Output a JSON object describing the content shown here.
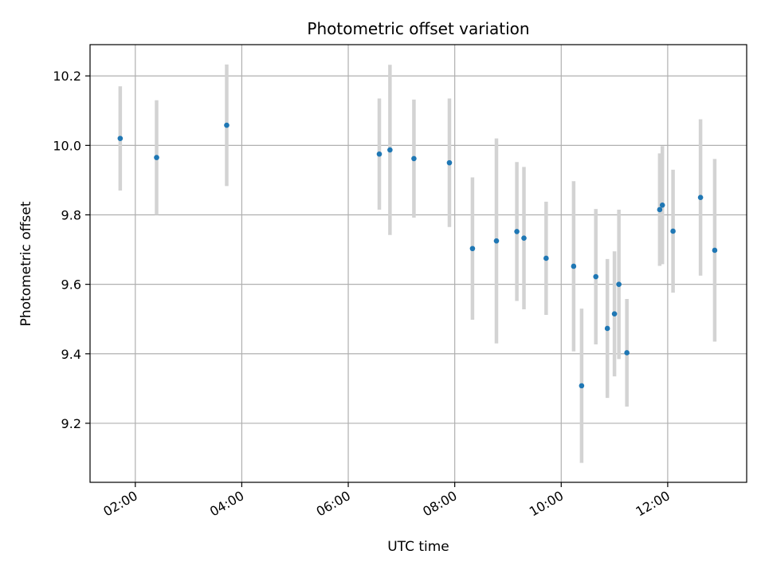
{
  "chart_data": {
    "type": "scatter",
    "title": "Photometric offset variation",
    "xlabel": "UTC time",
    "ylabel": "Photometric offset",
    "x_is_time": true,
    "xlim": [
      "01:09",
      "13:29"
    ],
    "ylim": [
      9.03,
      10.29
    ],
    "xticks": [
      "02:00",
      "04:00",
      "06:00",
      "08:00",
      "10:00",
      "12:00"
    ],
    "yticks": [
      9.2,
      9.4,
      9.6,
      9.8,
      10.0,
      10.2
    ],
    "grid": true,
    "point_color": "#1f77b4",
    "errorbar_color": "#d3d3d3",
    "points": [
      {
        "x": "01:43",
        "y": 10.02,
        "err": 0.15
      },
      {
        "x": "02:24",
        "y": 9.965,
        "err": 0.165
      },
      {
        "x": "03:43",
        "y": 10.058,
        "err": 0.175
      },
      {
        "x": "06:35",
        "y": 9.975,
        "err": 0.16
      },
      {
        "x": "06:47",
        "y": 9.987,
        "err": 0.245
      },
      {
        "x": "07:14",
        "y": 9.962,
        "err": 0.17
      },
      {
        "x": "07:54",
        "y": 9.95,
        "err": 0.185
      },
      {
        "x": "08:20",
        "y": 9.703,
        "err": 0.205
      },
      {
        "x": "08:47",
        "y": 9.725,
        "err": 0.295
      },
      {
        "x": "09:10",
        "y": 9.752,
        "err": 0.2
      },
      {
        "x": "09:18",
        "y": 9.733,
        "err": 0.205
      },
      {
        "x": "09:43",
        "y": 9.675,
        "err": 0.163
      },
      {
        "x": "10:14",
        "y": 9.652,
        "err": 0.245
      },
      {
        "x": "10:23",
        "y": 9.308,
        "err": 0.222
      },
      {
        "x": "10:39",
        "y": 9.622,
        "err": 0.195
      },
      {
        "x": "10:52",
        "y": 9.473,
        "err": 0.2
      },
      {
        "x": "11:00",
        "y": 9.515,
        "err": 0.18
      },
      {
        "x": "11:05",
        "y": 9.6,
        "err": 0.215
      },
      {
        "x": "11:14",
        "y": 9.403,
        "err": 0.155
      },
      {
        "x": "11:51",
        "y": 9.815,
        "err": 0.162
      },
      {
        "x": "11:54",
        "y": 9.828,
        "err": 0.17
      },
      {
        "x": "12:06",
        "y": 9.753,
        "err": 0.177
      },
      {
        "x": "12:37",
        "y": 9.85,
        "err": 0.225
      },
      {
        "x": "12:53",
        "y": 9.698,
        "err": 0.263
      }
    ]
  }
}
